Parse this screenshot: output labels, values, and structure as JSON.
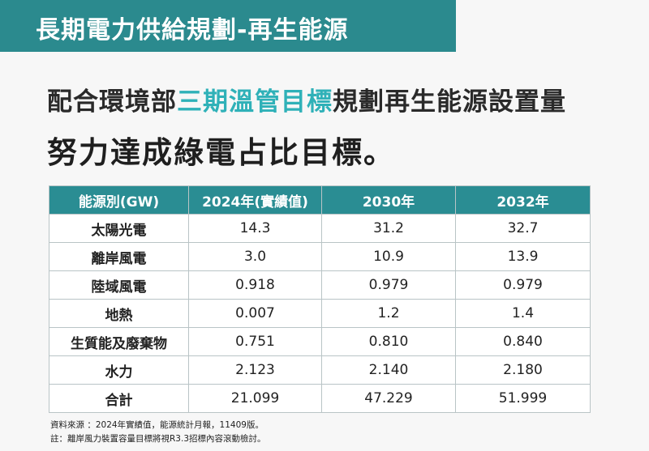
{
  "header": {
    "title": "長期電力供給規劃-再生能源"
  },
  "headline": {
    "line1": [
      "配合環境部",
      "三期溫管目標",
      "規劃再生能源設置量"
    ],
    "line2": "努力達成綠電占比目標。"
  },
  "table": {
    "columns": [
      "能源別(GW)",
      "2024年(實績值)",
      "2030年",
      "2032年"
    ],
    "rows": [
      [
        "太陽光電",
        "14.3",
        "31.2",
        "32.7"
      ],
      [
        "離岸風電",
        "3.0",
        "10.9",
        "13.9"
      ],
      [
        "陸域風電",
        "0.918",
        "0.979",
        "0.979"
      ],
      [
        "地熱",
        "0.007",
        "1.2",
        "1.4"
      ],
      [
        "生質能及廢棄物",
        "0.751",
        "0.810",
        "0.840"
      ],
      [
        "水力",
        "2.123",
        "2.140",
        "2.180"
      ],
      [
        "合計",
        "21.099",
        "47.229",
        "51.999"
      ]
    ]
  },
  "notes": [
    "資料來源 ：2024年實績值，能源統計月報，11409版。",
    "註：離岸風力裝置容量目標將視R3.3招標內容滾動檢討。"
  ]
}
